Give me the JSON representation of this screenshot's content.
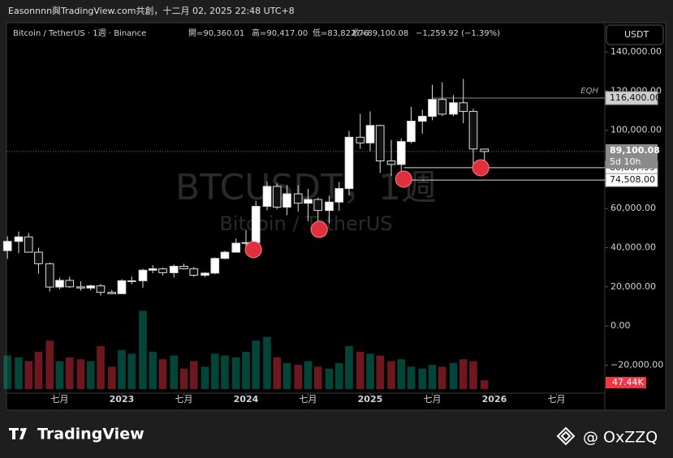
{
  "header": "Easonnnn與TradingView.com共創，十二月 02, 2025 22:48 UTC+8",
  "footer": {
    "brand": "TradingView",
    "handle": "@ OxZZQ"
  },
  "chart_data": {
    "type": "candlestick",
    "legend": {
      "symbol": "Bitcoin / TetherUS · 1週 · Binance",
      "open": "開=90,360.01",
      "high": "高=90,417.00",
      "low": "低=83,822.76",
      "close": "收=89,100.08",
      "change": "−1,259.92 (−1.39%)"
    },
    "currency_button": "USDT",
    "watermark": {
      "title": "BTCUSDT，1週",
      "subtitle": "Bitcoin / TetherUS"
    },
    "up_color": "#089981",
    "down_color": "#f23645",
    "x": [
      2022.08,
      2022.17,
      2022.25,
      2022.33,
      2022.42,
      2022.5,
      2022.58,
      2022.67,
      2022.75,
      2022.83,
      2022.92,
      2023.0,
      2023.08,
      2023.17,
      2023.25,
      2023.33,
      2023.42,
      2023.5,
      2023.58,
      2023.67,
      2023.75,
      2023.83,
      2023.92,
      2024.0,
      2024.08,
      2024.17,
      2024.25,
      2024.33,
      2024.42,
      2024.5,
      2024.58,
      2024.67,
      2024.75,
      2024.83,
      2024.92,
      2025.0,
      2025.08,
      2025.17,
      2025.25,
      2025.33,
      2025.42,
      2025.5,
      2025.58,
      2025.67,
      2025.75,
      2025.83,
      2025.92
    ],
    "open": [
      38500,
      43200,
      45500,
      37700,
      31800,
      19900,
      23300,
      20000,
      19400,
      20500,
      17200,
      16500,
      23100,
      23100,
      28500,
      29200,
      27200,
      30500,
      29200,
      25900,
      27000,
      34500,
      37700,
      42300,
      42600,
      61100,
      71300,
      60700,
      67500,
      62700,
      64600,
      59000,
      63300,
      70200,
      96400,
      93500,
      102400,
      84300,
      82500,
      94200,
      104600,
      107100,
      115700,
      108200,
      114000,
      109600,
      90360.01
    ],
    "high": [
      45800,
      48200,
      47500,
      40000,
      32400,
      24700,
      25200,
      22800,
      21100,
      21500,
      18400,
      23900,
      25300,
      29200,
      31000,
      29800,
      31400,
      31800,
      30200,
      27500,
      35000,
      38400,
      44700,
      48900,
      63900,
      73800,
      72800,
      72000,
      71900,
      70000,
      65600,
      66500,
      73600,
      99600,
      108300,
      109600,
      102800,
      95000,
      95800,
      111900,
      110500,
      123200,
      124500,
      117900,
      126200,
      111000,
      90417
    ],
    "low": [
      34300,
      37200,
      37600,
      26700,
      17600,
      18800,
      19500,
      18100,
      18200,
      15500,
      16300,
      16500,
      21300,
      19500,
      26900,
      25800,
      24800,
      28800,
      25100,
      24900,
      26500,
      34100,
      37600,
      38500,
      41900,
      59000,
      59600,
      56600,
      58400,
      53500,
      49000,
      52500,
      58900,
      66800,
      90500,
      89200,
      78200,
      76600,
      74500,
      93300,
      98200,
      105100,
      107300,
      107200,
      103500,
      80600,
      83822.76
    ],
    "close": [
      43200,
      45500,
      37700,
      31800,
      19900,
      23300,
      20000,
      19400,
      20500,
      17200,
      16500,
      23100,
      23100,
      28500,
      29200,
      27200,
      30500,
      29200,
      25900,
      27000,
      34500,
      37700,
      42300,
      42600,
      61100,
      71300,
      60700,
      67500,
      62700,
      64600,
      59000,
      63300,
      70200,
      96400,
      93500,
      102400,
      84300,
      82500,
      94200,
      104600,
      107100,
      115700,
      108200,
      114000,
      109600,
      90400,
      89100.08
    ],
    "volume": {
      "values": [
        180,
        170,
        150,
        200,
        260,
        150,
        170,
        160,
        150,
        230,
        120,
        210,
        190,
        420,
        200,
        160,
        180,
        110,
        150,
        120,
        190,
        180,
        170,
        200,
        260,
        280,
        170,
        140,
        130,
        150,
        120,
        110,
        140,
        230,
        200,
        190,
        180,
        150,
        160,
        120,
        110,
        130,
        120,
        140,
        160,
        150,
        47.44
      ],
      "last_label": "47.44K",
      "ylim": [
        0,
        500
      ]
    },
    "last_price_label": "89,100.08",
    "countdown": "5d 10h",
    "levels": [
      {
        "value": 116400,
        "label": "116,400.00",
        "from": 2025.5,
        "name": "EQH"
      },
      {
        "value": 80867.99,
        "label": "80,867.99",
        "from": 2025.27
      },
      {
        "value": 74508,
        "label": "74,508.00",
        "from": 2025.31
      }
    ],
    "markers": [
      {
        "x": 2024.06,
        "y": 39000
      },
      {
        "x": 2024.59,
        "y": 49300
      },
      {
        "x": 2025.27,
        "y": 75000
      },
      {
        "x": 2025.89,
        "y": 80800
      }
    ],
    "xlim": [
      2022.072,
      2026.889
    ],
    "xticks": [
      {
        "value": 2022.5,
        "label": "七月"
      },
      2023,
      {
        "value": 2023.5,
        "label": "七月"
      },
      2024,
      {
        "value": 2024.5,
        "label": "七月"
      },
      2025,
      {
        "value": 2025.5,
        "label": "七月"
      },
      2026,
      {
        "value": 2026.5,
        "label": "七月"
      }
    ],
    "ylim": [
      -34300,
      154900
    ],
    "yticks": [
      {
        "value": 140000,
        "label": "140,000.00"
      },
      {
        "value": 120000,
        "label": "120,000.00"
      },
      {
        "value": 100000,
        "label": "100,000.00"
      },
      {
        "value": 60000,
        "label": "60,000.00"
      },
      {
        "value": 40000,
        "label": "40,000.00"
      },
      {
        "value": 20000,
        "label": "20,000.00"
      },
      {
        "value": 0,
        "label": "0.00"
      },
      {
        "value": -20000,
        "label": "−20,000.00"
      }
    ]
  }
}
